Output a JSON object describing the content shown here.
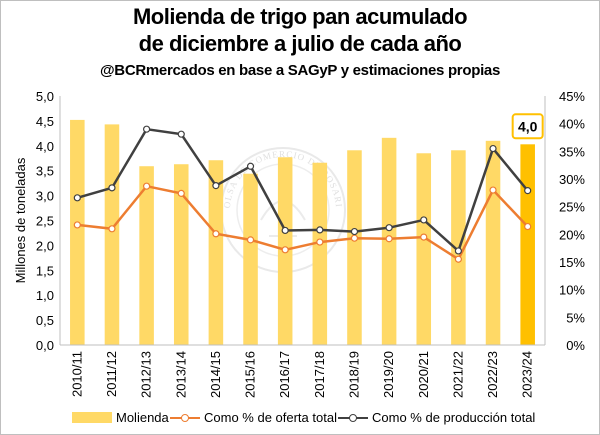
{
  "title_line1": "Molienda de trigo pan acumulado",
  "title_line2": "de diciembre a julio de cada año",
  "subtitle": "@BCRmercados en base a SAGyP y estimaciones propias",
  "watermark_text": "BOLSA DE COMERCIO DE ROSARIO",
  "chart_data": {
    "type": "bar+line",
    "categories": [
      "2010/11",
      "2011/12",
      "2012/13",
      "2013/14",
      "2014/15",
      "2015/16",
      "2016/17",
      "2017/18",
      "2018/19",
      "2019/20",
      "2020/21",
      "2021/22",
      "2022/23",
      "2023/24"
    ],
    "ylabel": "Millones de toneladas",
    "ylim": [
      0,
      5
    ],
    "y_ticks": [
      "0,0",
      "0,5",
      "1,0",
      "1,5",
      "2,0",
      "2,5",
      "3,0",
      "3,5",
      "4,0",
      "4,5",
      "5,0"
    ],
    "y2lim": [
      0,
      0.45
    ],
    "y2_ticks": [
      "0%",
      "5%",
      "10%",
      "15%",
      "20%",
      "25%",
      "30%",
      "35%",
      "40%",
      "45%"
    ],
    "grid": false,
    "legend_position": "bottom",
    "series": [
      {
        "name": "Molienda",
        "kind": "bar",
        "axis": "left",
        "color": "#FFD966",
        "highlight_color": "#FFC000",
        "values": [
          4.52,
          4.43,
          3.59,
          3.63,
          3.71,
          3.44,
          3.77,
          3.66,
          3.91,
          4.16,
          3.85,
          3.91,
          4.1,
          4.03
        ]
      },
      {
        "name": "Como % de oferta total",
        "kind": "line",
        "axis": "right",
        "color": "#ED7D31",
        "values": [
          0.217,
          0.21,
          0.287,
          0.274,
          0.201,
          0.19,
          0.172,
          0.186,
          0.193,
          0.192,
          0.195,
          0.155,
          0.28,
          0.214
        ]
      },
      {
        "name": "Como % de producción total",
        "kind": "line",
        "axis": "right",
        "color": "#404040",
        "values": [
          0.266,
          0.284,
          0.39,
          0.381,
          0.288,
          0.323,
          0.207,
          0.208,
          0.205,
          0.212,
          0.226,
          0.17,
          0.355,
          0.279
        ]
      }
    ],
    "annotations": [
      {
        "category": "2023/24",
        "text": "4,0"
      }
    ]
  }
}
